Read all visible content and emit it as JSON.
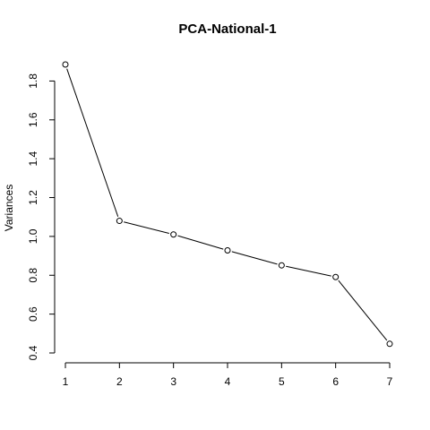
{
  "chart_data": {
    "type": "line",
    "title": "PCA-National-1",
    "xlabel": "",
    "ylabel": "Variances",
    "x": [
      1,
      2,
      3,
      4,
      5,
      6,
      7
    ],
    "series": [
      {
        "values": [
          1.885,
          1.08,
          1.01,
          0.928,
          0.851,
          0.791,
          0.447
        ]
      }
    ],
    "xticks": [
      "1",
      "2",
      "3",
      "4",
      "5",
      "6",
      "7"
    ],
    "yticks": [
      "0.4",
      "0.6",
      "0.8",
      "1.0",
      "1.2",
      "1.4",
      "1.6",
      "1.8"
    ],
    "xlim": [
      1,
      7
    ],
    "ylim": [
      0.4,
      1.885
    ],
    "grid": false,
    "marker": "open-circle",
    "line_color": "#000000"
  }
}
